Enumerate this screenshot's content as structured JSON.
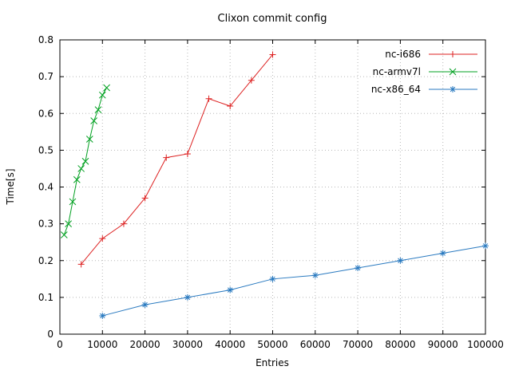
{
  "chart_data": {
    "type": "line",
    "title": "Clixon commit config",
    "xlabel": "Entries",
    "ylabel": "Time[s]",
    "xlim": [
      0,
      100000
    ],
    "ylim": [
      0,
      0.8
    ],
    "grid": true,
    "legend_position": "top-right-inside",
    "background_color": "#ffffff",
    "border_color": "#000000",
    "grid_color": "#b8b8b8",
    "xticks": [
      0,
      10000,
      20000,
      30000,
      40000,
      50000,
      60000,
      70000,
      80000,
      90000,
      100000
    ],
    "xtick_labels": [
      "0",
      "10000",
      "20000",
      "30000",
      "40000",
      "50000",
      "60000",
      "70000",
      "80000",
      "90000",
      "100000"
    ],
    "yticks": [
      0,
      0.1,
      0.2,
      0.3,
      0.4,
      0.5,
      0.6,
      0.7,
      0.8
    ],
    "ytick_labels": [
      "0",
      "0.1",
      "0.2",
      "0.3",
      "0.4",
      "0.5",
      "0.6",
      "0.7",
      "0.8"
    ],
    "series": [
      {
        "name": "nc-i686",
        "color": "#dd2222",
        "marker": "plus",
        "x": [
          5000,
          10000,
          15000,
          20000,
          25000,
          30000,
          35000,
          40000,
          45000,
          50000
        ],
        "y": [
          0.19,
          0.26,
          0.3,
          0.37,
          0.48,
          0.49,
          0.64,
          0.62,
          0.69,
          0.76
        ]
      },
      {
        "name": "nc-armv7l",
        "color": "#00a020",
        "marker": "cross",
        "x": [
          1000,
          2000,
          3000,
          4000,
          5000,
          6000,
          7000,
          8000,
          9000,
          10000,
          11000
        ],
        "y": [
          0.27,
          0.3,
          0.36,
          0.42,
          0.45,
          0.47,
          0.53,
          0.58,
          0.61,
          0.65,
          0.67
        ]
      },
      {
        "name": "nc-x86_64",
        "color": "#2a7ac0",
        "marker": "star",
        "x": [
          10000,
          20000,
          30000,
          40000,
          50000,
          60000,
          70000,
          80000,
          90000,
          100000
        ],
        "y": [
          0.05,
          0.08,
          0.1,
          0.12,
          0.15,
          0.16,
          0.18,
          0.2,
          0.22,
          0.24
        ]
      }
    ]
  }
}
